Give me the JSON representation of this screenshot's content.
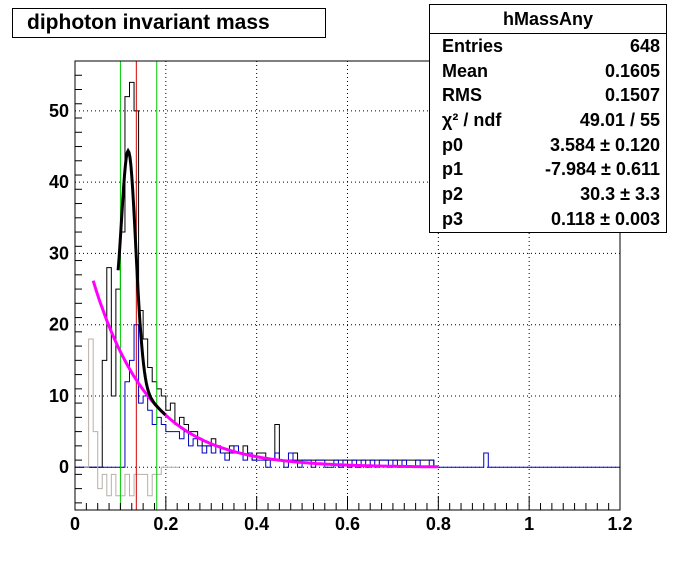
{
  "title": "diphoton invariant mass",
  "stats": {
    "name": "hMassAny",
    "rows": [
      {
        "label": "Entries",
        "value": "648"
      },
      {
        "label": "Mean",
        "value": "0.1605"
      },
      {
        "label": "RMS",
        "value": "0.1507"
      },
      {
        "label": "χ² / ndf",
        "value": "49.01 / 55"
      },
      {
        "label": "p0",
        "value": "3.584 ± 0.120"
      },
      {
        "label": "p1",
        "value": "-7.984 ± 0.611"
      },
      {
        "label": "p2",
        "value": "30.3 ± 3.3"
      },
      {
        "label": "p3",
        "value": "0.118 ± 0.003"
      }
    ]
  },
  "chart_data": {
    "type": "histogram",
    "xlim": [
      0,
      1.2
    ],
    "ylim": [
      -6,
      57
    ],
    "xticks": [
      "0",
      "0.2",
      "0.4",
      "0.6",
      "0.8",
      "1",
      "1.2"
    ],
    "yticks": [
      "0",
      "10",
      "20",
      "30",
      "40",
      "50"
    ],
    "xtick_values": [
      0,
      0.2,
      0.4,
      0.6,
      0.8,
      1.0,
      1.2
    ],
    "ytick_values": [
      0,
      10,
      20,
      30,
      40,
      50
    ],
    "grid": true,
    "bin_width": 0.01,
    "series": [
      {
        "color": "#000000",
        "x_start": 0.0,
        "values": [
          0,
          0,
          0,
          0,
          0,
          0,
          15,
          28,
          10,
          25,
          33,
          52,
          54,
          50,
          22,
          18,
          14,
          12,
          11,
          10,
          8,
          9,
          6,
          7,
          6,
          5,
          5,
          4,
          3,
          3,
          4,
          3,
          2,
          2,
          3,
          2,
          2,
          3,
          2,
          1,
          2,
          2,
          1,
          1,
          6,
          1,
          1,
          1,
          2,
          1,
          1,
          1,
          1,
          1,
          1,
          1,
          1,
          1,
          1,
          1,
          1,
          1,
          1,
          1,
          1,
          1,
          1,
          1,
          1,
          1,
          1,
          1,
          1,
          1,
          1,
          1,
          1,
          1,
          1,
          0
        ]
      },
      {
        "color": "#0000c0",
        "x_start": 0.0,
        "values": [
          0,
          0,
          0,
          0,
          0,
          0,
          0,
          0,
          0,
          0,
          0,
          12,
          15,
          20,
          9,
          10,
          8,
          6,
          7,
          6,
          5,
          5,
          5,
          4,
          5,
          3,
          4,
          3,
          2,
          3,
          2,
          3,
          2,
          1,
          2,
          3,
          2,
          1,
          2,
          1,
          1,
          1,
          0,
          1,
          2,
          1,
          0,
          2,
          1,
          0,
          1,
          1,
          0,
          1,
          1,
          0,
          0,
          1,
          0,
          1,
          0,
          1,
          0,
          1,
          0,
          1,
          0,
          1,
          1,
          0,
          1,
          0,
          1,
          0,
          0,
          1,
          0,
          0,
          1,
          0,
          0,
          0,
          0,
          0,
          0,
          0,
          0,
          0,
          0,
          0,
          2,
          0,
          0,
          0,
          0,
          0,
          0,
          0,
          0,
          0,
          0,
          0,
          0,
          0,
          0,
          0,
          0,
          0,
          0,
          0,
          0,
          0,
          0,
          0,
          0,
          0,
          0,
          0,
          0,
          0
        ]
      },
      {
        "color": "#b8b0a8",
        "x_start": 0.02,
        "values": [
          0,
          18,
          5,
          -3,
          -1,
          -4,
          -1,
          -4,
          -4,
          -1,
          -4,
          -1,
          -1,
          -1,
          -4,
          -1,
          -1,
          0,
          0,
          0,
          0
        ]
      }
    ],
    "fit": {
      "color": "#000000",
      "formula": "exp(p0+p1*x) + p2*exp(-(x-p3)^2/(2*0.016^2))",
      "params": {
        "p0": 3.584,
        "p1": -7.984,
        "p2": 30.3,
        "p3": 0.118
      },
      "x_range": [
        0.095,
        0.2
      ]
    },
    "background": {
      "color": "#ff00ff",
      "formula": "exp(p0+p1*x)",
      "x_range": [
        0.04,
        0.8
      ]
    },
    "vertical_lines": [
      {
        "x": 0.1,
        "color": "#00cc00"
      },
      {
        "x": 0.135,
        "color": "#cc0000"
      },
      {
        "x": 0.18,
        "color": "#00cc00"
      }
    ]
  }
}
